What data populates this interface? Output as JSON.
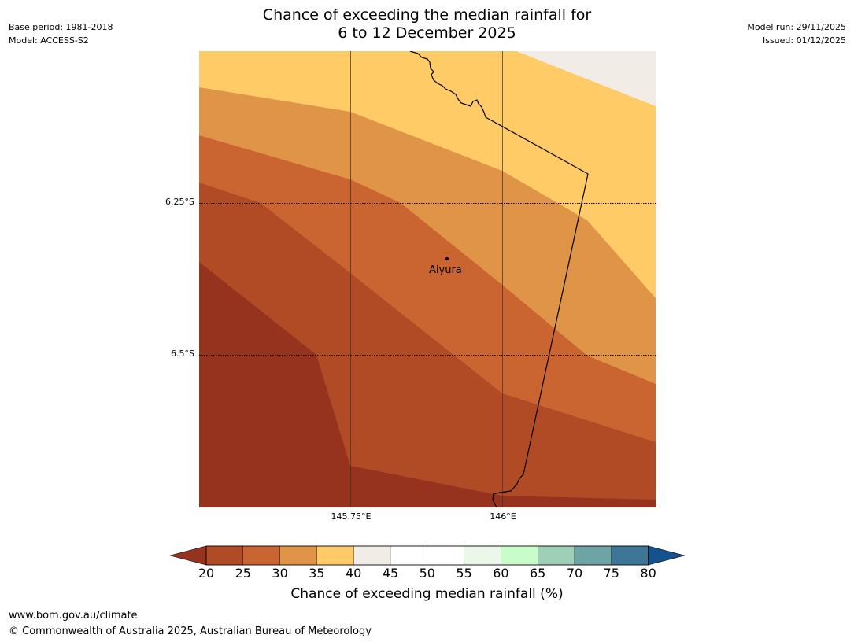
{
  "header": {
    "title_line1": "Chance of exceeding the median rainfall for",
    "title_line2": "6 to 12 December 2025",
    "base_period": "Base period: 1981-2018",
    "model": "Model: ACCESS-S2",
    "model_run": "Model run: 29/11/2025",
    "issued": "Issued: 01/12/2025"
  },
  "map": {
    "lat_labels": [
      "6.25°S",
      "6.5°S"
    ],
    "lon_labels": [
      "145.75°E",
      "146°E"
    ],
    "place": {
      "name": "Aiyura"
    },
    "band_colors": {
      "lt20": "#96331e",
      "b20_25": "#b04b26",
      "b25_30": "#ca6431",
      "b30_35": "#e09448",
      "b35_40": "#fecb67",
      "b40_45": "#f1ece6"
    },
    "boundary_color": "#000000"
  },
  "colorbar": {
    "ticks": [
      "20",
      "25",
      "30",
      "35",
      "40",
      "45",
      "50",
      "55",
      "60",
      "65",
      "70",
      "75",
      "80"
    ],
    "colors": [
      "#b04b26",
      "#ca6431",
      "#e09448",
      "#fecb67",
      "#f1ece6",
      "#ffffff",
      "#ffffff",
      "#eaf7e9",
      "#c8fcc8",
      "#9ed0b8",
      "#6ea4a6",
      "#3e7697"
    ],
    "under_color": "#96331e",
    "over_color": "#14518d",
    "label": "Chance of exceeding median rainfall (%)"
  },
  "footer": {
    "url": "www.bom.gov.au/climate",
    "copyright": "© Commonwealth of Australia 2025, Australian Bureau of Meteorology"
  }
}
